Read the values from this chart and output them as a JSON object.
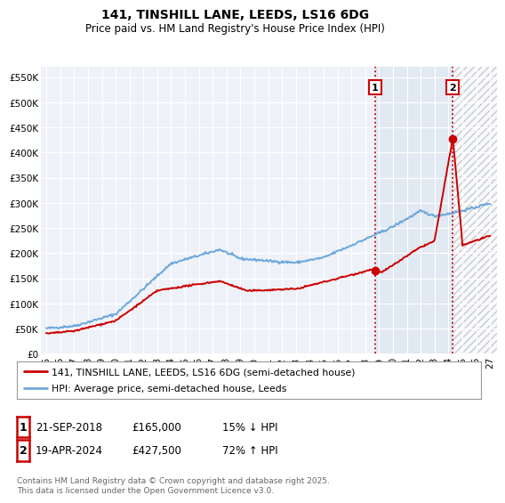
{
  "title": "141, TINSHILL LANE, LEEDS, LS16 6DG",
  "subtitle": "Price paid vs. HM Land Registry's House Price Index (HPI)",
  "ylabel_ticks": [
    "£0",
    "£50K",
    "£100K",
    "£150K",
    "£200K",
    "£250K",
    "£300K",
    "£350K",
    "£400K",
    "£450K",
    "£500K",
    "£550K"
  ],
  "ytick_vals": [
    0,
    50000,
    100000,
    150000,
    200000,
    250000,
    300000,
    350000,
    400000,
    450000,
    500000,
    550000
  ],
  "ylim": [
    0,
    570000
  ],
  "xlim_start": 1994.6,
  "xlim_end": 2027.5,
  "xtick_years": [
    1995,
    1996,
    1997,
    1998,
    1999,
    2000,
    2001,
    2002,
    2003,
    2004,
    2005,
    2006,
    2007,
    2008,
    2009,
    2010,
    2011,
    2012,
    2013,
    2014,
    2015,
    2016,
    2017,
    2018,
    2019,
    2020,
    2021,
    2022,
    2023,
    2024,
    2025,
    2026,
    2027
  ],
  "hpi_color": "#6fa8dc",
  "price_color": "#cc0000",
  "sale1_year": 2018.72,
  "sale1_price": 165000,
  "sale2_year": 2024.3,
  "sale2_price": 427500,
  "vline_color": "#cc0000",
  "shade_color": "#dce6f1",
  "legend_line1": "141, TINSHILL LANE, LEEDS, LS16 6DG (semi-detached house)",
  "legend_line2": "HPI: Average price, semi-detached house, Leeds",
  "note1_date": "21-SEP-2018",
  "note1_price": "£165,000",
  "note1_hpi": "15% ↓ HPI",
  "note2_date": "19-APR-2024",
  "note2_price": "£427,500",
  "note2_hpi": "72% ↑ HPI",
  "footer": "Contains HM Land Registry data © Crown copyright and database right 2025.\nThis data is licensed under the Open Government Licence v3.0.",
  "background_color": "#ffffff",
  "plot_bg_color": "#eef2f8"
}
